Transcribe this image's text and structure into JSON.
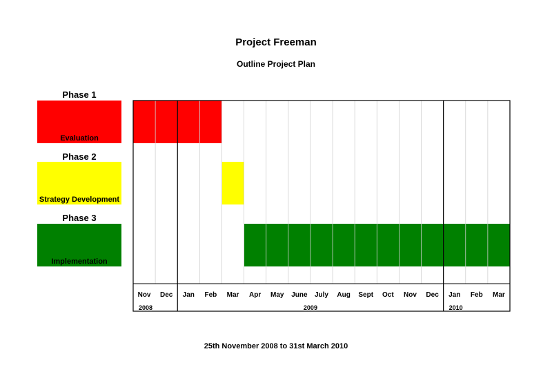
{
  "title": "Project Freeman",
  "subtitle": "Outline Project Plan",
  "footer": "25th November 2008 to 31st March 2010",
  "colors": {
    "phase1": "#ff0000",
    "phase2": "#ffff00",
    "phase3": "#008000"
  },
  "phases": [
    {
      "label": "Phase 1",
      "name": "Evaluation",
      "color": "#ff0000"
    },
    {
      "label": "Phase 2",
      "name": "Strategy Development",
      "color": "#ffff00"
    },
    {
      "label": "Phase 3",
      "name": "Implementation",
      "color": "#008000"
    }
  ],
  "chart_data": {
    "type": "gantt",
    "months": [
      "Nov",
      "Dec",
      "Jan",
      "Feb",
      "Mar",
      "Apr",
      "May",
      "June",
      "July",
      "Aug",
      "Sept",
      "Oct",
      "Nov",
      "Dec",
      "Jan",
      "Feb",
      "Mar"
    ],
    "years": [
      {
        "label": "2008",
        "start": 0,
        "end": 2
      },
      {
        "label": "2009",
        "start": 2,
        "end": 14
      },
      {
        "label": "2010",
        "start": 14,
        "end": 17
      }
    ],
    "tasks": [
      {
        "phase": "Evaluation",
        "start_month": 0,
        "end_month": 4,
        "color": "#ff0000"
      },
      {
        "phase": "Strategy Development",
        "start_month": 4,
        "end_month": 5,
        "color": "#ffff00"
      },
      {
        "phase": "Implementation",
        "start_month": 5,
        "end_month": 17,
        "color": "#008000"
      }
    ]
  }
}
